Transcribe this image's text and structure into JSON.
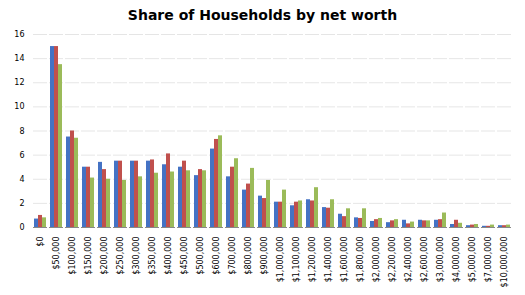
{
  "chart_data": {
    "type": "bar",
    "title": "Share of Households by net worth",
    "categories": [
      "$0",
      "$50,000",
      "$100,000",
      "$150,000",
      "$200,000",
      "$250,000",
      "$300,000",
      "$350,000",
      "$400,000",
      "$450,000",
      "$500,000",
      "$600,000",
      "$700,000",
      "$800,000",
      "$900,000",
      "$1,000,000",
      "$1,100,000",
      "$1,200,000",
      "$1,400,000",
      "$1,600,000",
      "$1,800,000",
      "$2,000,000",
      "$2,200,000",
      "$2,400,000",
      "$2,600,000",
      "$3,000,000",
      "$4,000,000",
      "$5,000,000",
      "$7,000,000",
      "$10,000,000"
    ],
    "series": [
      {
        "color": "#4472C4",
        "values": [
          0.7,
          15.0,
          7.5,
          5.0,
          5.4,
          5.5,
          5.5,
          5.5,
          5.2,
          5.0,
          4.3,
          6.5,
          4.2,
          3.1,
          2.6,
          2.1,
          1.8,
          2.3,
          1.65,
          1.1,
          0.8,
          0.5,
          0.4,
          0.6,
          0.6,
          0.6,
          0.25,
          0.15,
          0.1,
          0.15
        ]
      },
      {
        "color": "#C0504D",
        "values": [
          1.0,
          15.0,
          8.0,
          5.0,
          4.8,
          5.5,
          5.5,
          5.6,
          6.1,
          5.5,
          4.8,
          7.3,
          5.0,
          3.6,
          2.4,
          2.1,
          2.1,
          2.2,
          1.6,
          0.9,
          0.75,
          0.65,
          0.55,
          0.3,
          0.55,
          0.65,
          0.6,
          0.2,
          0.1,
          0.15
        ]
      },
      {
        "color": "#9BBB59",
        "values": [
          0.8,
          13.5,
          7.4,
          4.1,
          4.0,
          3.9,
          4.2,
          4.5,
          4.6,
          4.7,
          4.7,
          7.6,
          5.7,
          4.9,
          3.9,
          3.1,
          2.2,
          3.3,
          2.3,
          1.55,
          1.55,
          0.75,
          0.65,
          0.45,
          0.55,
          1.2,
          0.35,
          0.25,
          0.2,
          0.2
        ]
      }
    ],
    "ylim": [
      0,
      16
    ],
    "yticks": [
      0,
      2,
      4,
      6,
      8,
      10,
      12,
      14,
      16
    ],
    "grid": true
  }
}
